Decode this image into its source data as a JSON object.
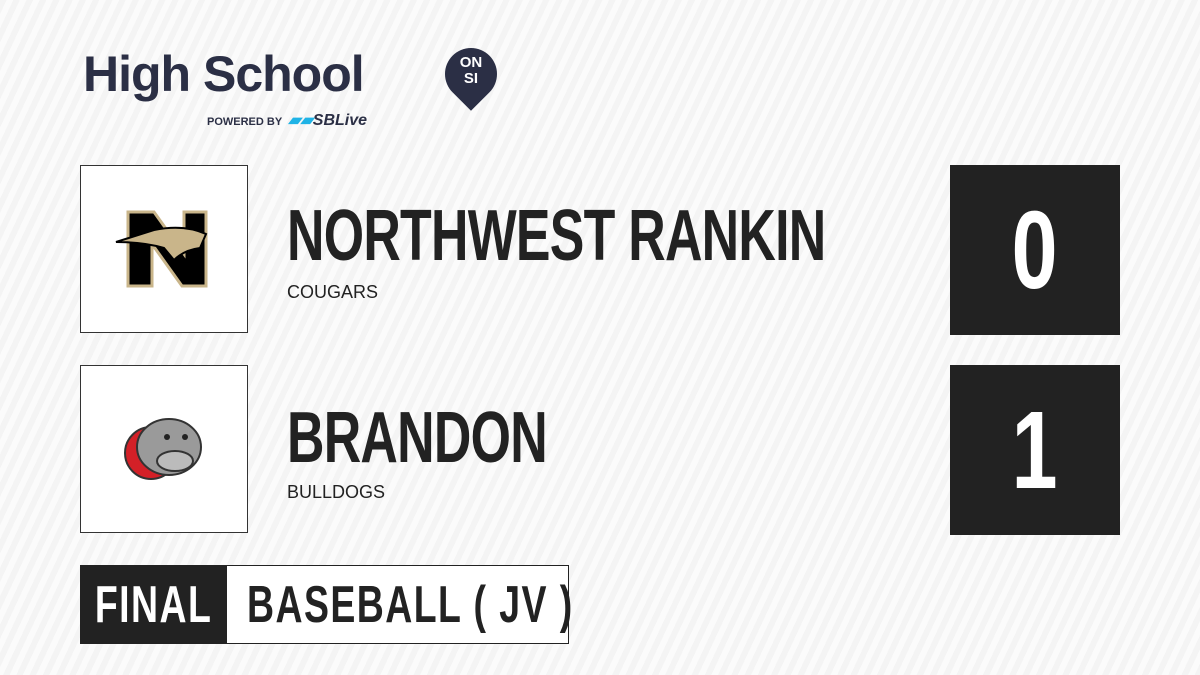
{
  "brand": {
    "title": "High School",
    "badge_line1": "ON",
    "badge_line2": "SI",
    "powered_by": "POWERED BY",
    "partner": "SBLive"
  },
  "teams": [
    {
      "name": "NORTHWEST RANKIN",
      "mascot": "COUGARS",
      "score": "0",
      "logo": "cougar-n-logo",
      "logo_colors": [
        "#000000",
        "#c9b58a"
      ]
    },
    {
      "name": "BRANDON",
      "mascot": "BULLDOGS",
      "score": "1",
      "logo": "bulldog-logo",
      "logo_colors": [
        "#9a9a9a",
        "#d32027"
      ]
    }
  ],
  "status": {
    "label": "FINAL",
    "sport": "BASEBALL ( JV )"
  }
}
